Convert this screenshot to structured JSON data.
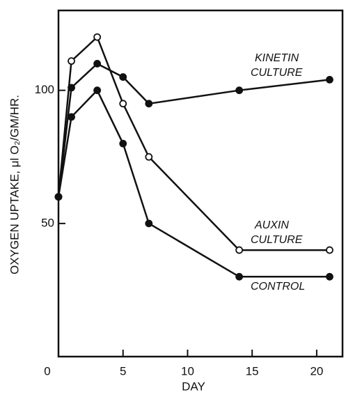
{
  "chart_data": {
    "type": "line",
    "x_label": "DAY",
    "y_label": "OXYGEN UPTAKE, μl O₂/GM/HR.",
    "x": [
      0,
      1,
      3,
      5,
      7,
      14,
      21
    ],
    "series": [
      {
        "name": "KINETIN CULTURE",
        "color": "#111111",
        "marker": "filled",
        "values": [
          60,
          101,
          110,
          105,
          95,
          100,
          104
        ]
      },
      {
        "name": "AUXIN CULTURE",
        "color": "#111111",
        "marker": "open",
        "values": [
          60,
          111,
          120,
          95,
          75,
          40,
          40
        ]
      },
      {
        "name": "CONTROL",
        "color": "#111111",
        "marker": "filled",
        "values": [
          60,
          90,
          100,
          80,
          50,
          30,
          30
        ]
      }
    ],
    "annotations": [
      [
        "KINETIN",
        "CULTURE"
      ],
      [
        "AUXIN",
        "CULTURE"
      ],
      [
        "CONTROL"
      ]
    ],
    "xlim": [
      0,
      22
    ],
    "xticks": [
      0,
      5,
      10,
      15,
      20
    ],
    "ylim": [
      0,
      130
    ],
    "yticks": [
      50,
      100
    ],
    "grid": false
  }
}
